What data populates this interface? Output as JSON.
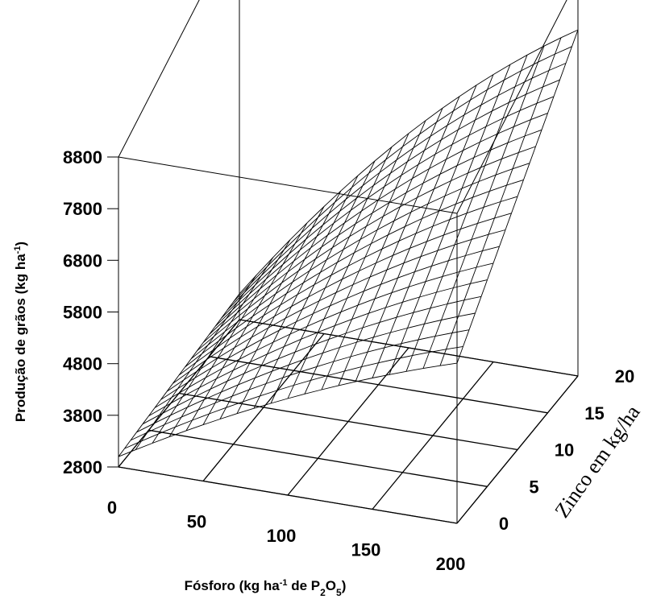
{
  "chart_data": {
    "type": "surface",
    "x_axis": {
      "label_parts": [
        "Fósforo (kg ha",
        "-1",
        " de P",
        "2",
        "O",
        "5",
        ")"
      ],
      "ticks": [
        0,
        50,
        100,
        150,
        200
      ],
      "range": [
        0,
        200
      ]
    },
    "y_axis": {
      "label": "Zinco em kg/ha",
      "ticks": [
        0,
        5,
        10,
        15,
        20
      ],
      "range": [
        0,
        20
      ]
    },
    "z_axis": {
      "label_parts": [
        "Produção de grãos (kg ha",
        "-1",
        ")"
      ],
      "ticks": [
        2800,
        3800,
        4800,
        5800,
        6800,
        7800,
        8800
      ],
      "range": [
        2800,
        8800
      ]
    },
    "surface": {
      "fosforo": [
        0,
        200
      ],
      "zinco": [
        0,
        20
      ],
      "producao_corners": {
        "fosforo_0_zinco_0": 3000,
        "fosforo_200_zinco_0": 5900,
        "fosforo_0_zinco_20": 3300,
        "fosforo_200_zinco_20": 9500
      },
      "grid_lines": 20
    }
  }
}
